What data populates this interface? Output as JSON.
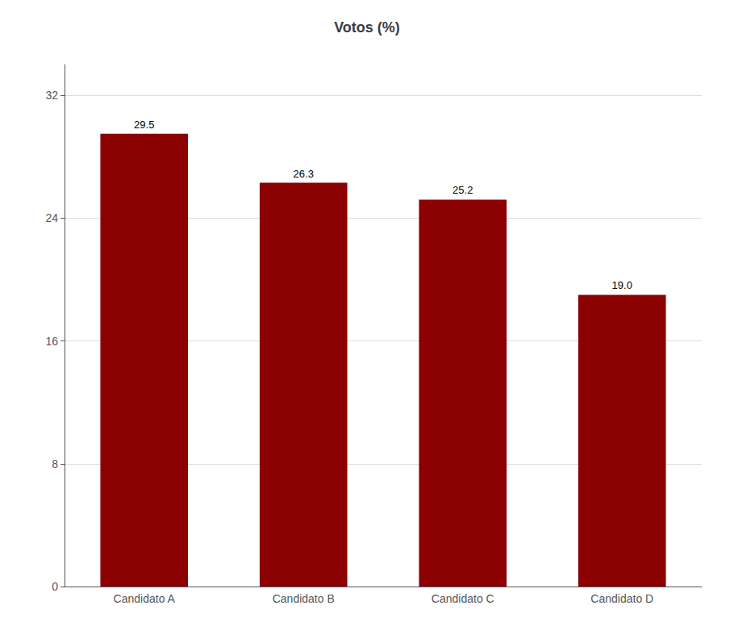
{
  "chart_data": {
    "type": "bar",
    "title": "Votos (%)",
    "categories": [
      "Candidato A",
      "Candidato B",
      "Candidato C",
      "Candidato D"
    ],
    "values": [
      29.5,
      26.3,
      25.2,
      19.0
    ],
    "value_labels": [
      "29.5",
      "26.3",
      "25.2",
      "19.0"
    ],
    "color": "#8B0000",
    "ylim": [
      0,
      34
    ],
    "yticks": [
      0,
      8,
      16,
      24,
      32
    ],
    "grid": true,
    "data_labels": true
  }
}
